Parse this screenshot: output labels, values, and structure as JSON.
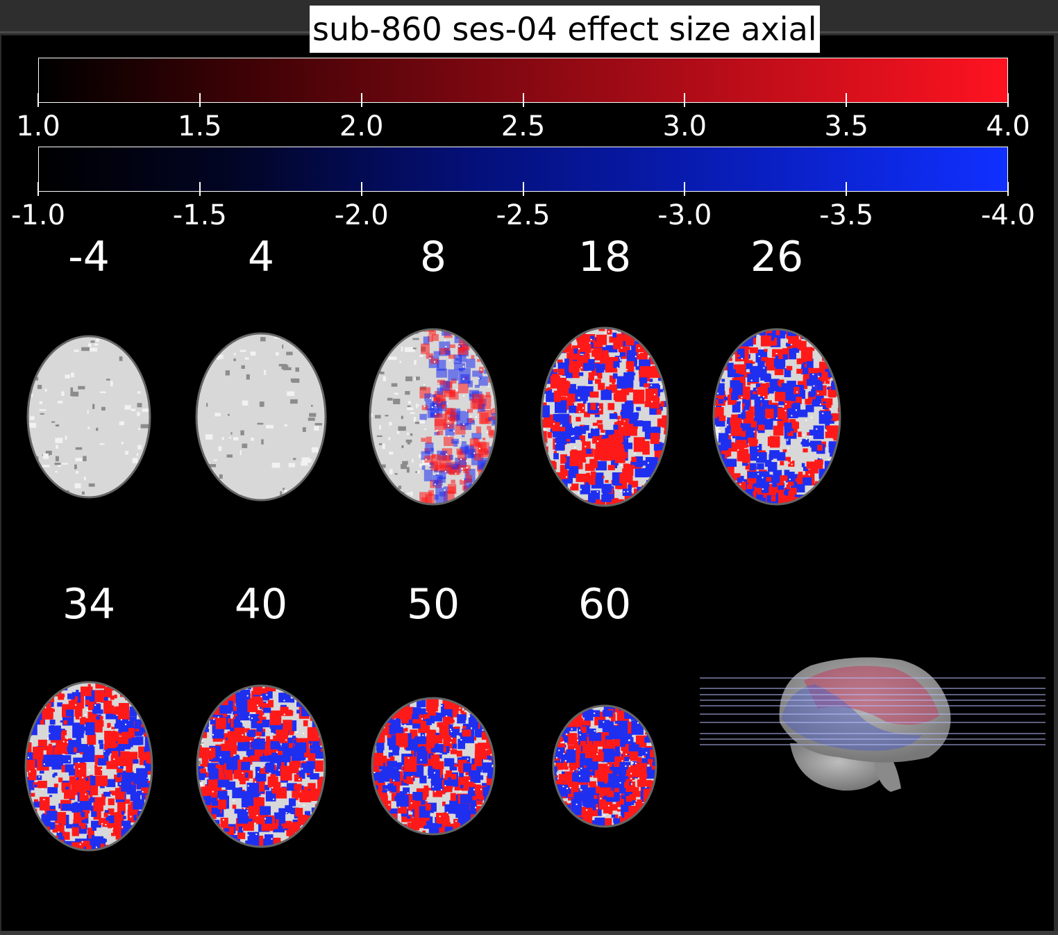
{
  "title": "sub-860 ses-04 effect size axial",
  "colorbars": {
    "positive": {
      "ticks": [
        "1.0",
        "1.5",
        "2.0",
        "2.5",
        "3.0",
        "3.5",
        "4.0"
      ],
      "color_low": "#000000",
      "color_high": "#ff1220"
    },
    "negative": {
      "ticks": [
        "-1.0",
        "-1.5",
        "-2.0",
        "-2.5",
        "-3.0",
        "-3.5",
        "-4.0"
      ],
      "color_low": "#000000",
      "color_high": "#1030ff"
    }
  },
  "slices": {
    "row1": [
      "-4",
      "4",
      "8",
      "18",
      "26"
    ],
    "row2": [
      "34",
      "40",
      "50",
      "60"
    ]
  },
  "overlay_colors": {
    "positive": "#ff1a1a",
    "negative": "#1f2ff0",
    "anatomy": "#d8d8d8"
  }
}
